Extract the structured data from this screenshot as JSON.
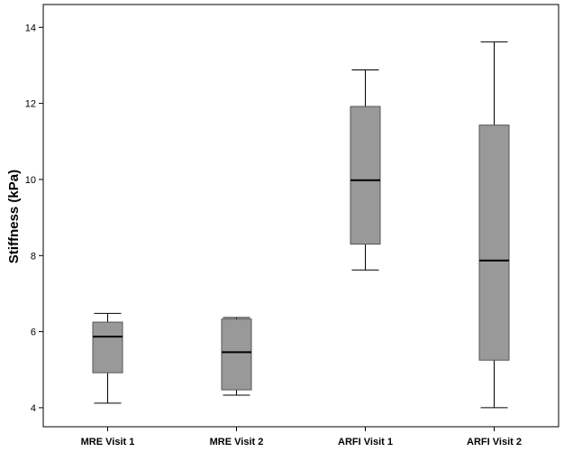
{
  "chart_data": {
    "type": "boxplot",
    "title": "",
    "xlabel": "",
    "ylabel": "Stiffness (kPa)",
    "ylim": [
      3.5,
      14.6
    ],
    "yticks": [
      4,
      6,
      8,
      10,
      12,
      14
    ],
    "grid": false,
    "legend": "none",
    "box_color": "#999999",
    "categories": [
      "MRE Visit 1",
      "MRE Visit 2",
      "ARFI Visit 1",
      "ARFI Visit 2"
    ],
    "boxes": [
      {
        "category": "MRE Visit 1",
        "min": 4.12,
        "q1": 4.92,
        "median": 5.87,
        "q3": 6.25,
        "max": 6.48
      },
      {
        "category": "MRE Visit 2",
        "min": 4.33,
        "q1": 4.47,
        "median": 5.46,
        "q3": 6.33,
        "max": 6.37
      },
      {
        "category": "ARFI Visit 1",
        "min": 7.62,
        "q1": 8.3,
        "median": 9.98,
        "q3": 11.92,
        "max": 12.88
      },
      {
        "category": "ARFI Visit 2",
        "min": 4.0,
        "q1": 5.25,
        "median": 7.87,
        "q3": 11.43,
        "max": 13.62
      }
    ]
  }
}
